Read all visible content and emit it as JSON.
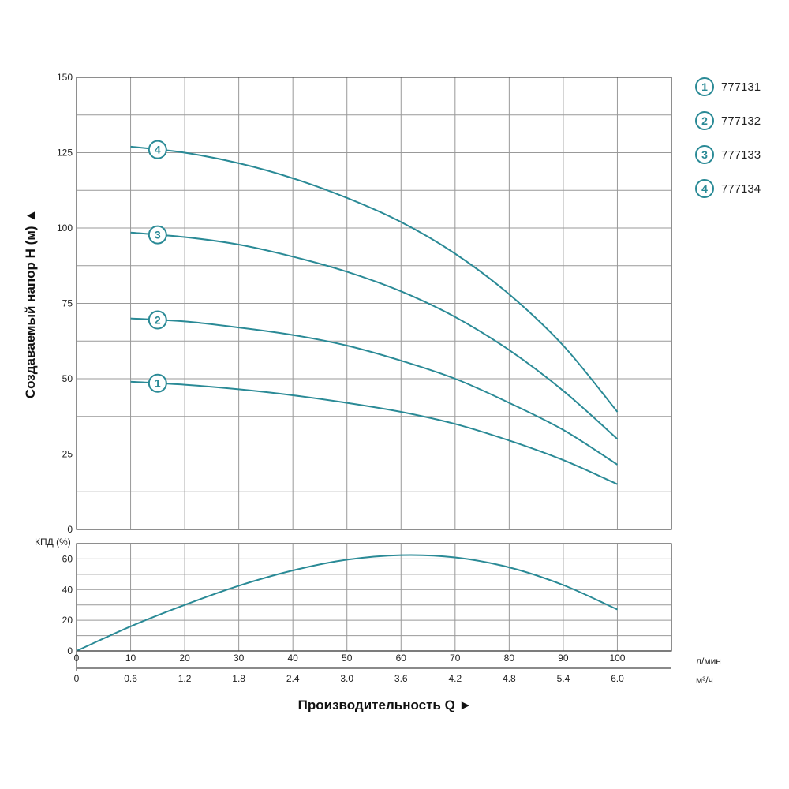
{
  "chart_data": [
    {
      "type": "line",
      "ylabel": "Создаваемый напор H (м) ▲",
      "ylim": [
        0,
        150
      ],
      "yticks": [
        "0",
        "25",
        "50",
        "75",
        "100",
        "125",
        "150"
      ],
      "xlim": [
        0,
        110
      ],
      "grid": true,
      "legend_position": "right",
      "series": [
        {
          "name": "777131",
          "marker": "1",
          "x": [
            10,
            20,
            30,
            40,
            50,
            60,
            70,
            80,
            90,
            100
          ],
          "values": [
            49,
            48,
            46.5,
            44.5,
            42,
            39,
            35,
            29.5,
            23,
            15
          ]
        },
        {
          "name": "777132",
          "marker": "2",
          "x": [
            10,
            20,
            30,
            40,
            50,
            60,
            70,
            80,
            90,
            100
          ],
          "values": [
            70,
            69,
            67,
            64.5,
            61,
            56,
            50,
            42,
            33,
            21.5
          ]
        },
        {
          "name": "777133",
          "marker": "3",
          "x": [
            10,
            20,
            30,
            40,
            50,
            60,
            70,
            80,
            90,
            100
          ],
          "values": [
            98.5,
            97,
            94.5,
            90.5,
            85.5,
            79,
            70.5,
            59.5,
            46,
            30
          ]
        },
        {
          "name": "777134",
          "marker": "4",
          "x": [
            10,
            20,
            30,
            40,
            50,
            60,
            70,
            80,
            90,
            100
          ],
          "values": [
            127,
            125,
            121.5,
            116.5,
            110,
            102,
            91.5,
            78,
            61,
            39
          ]
        }
      ]
    },
    {
      "type": "line",
      "ylabel": "КПД (%)",
      "ylim": [
        0,
        70
      ],
      "yticks": [
        "0",
        "20",
        "40",
        "60"
      ],
      "xlim": [
        0,
        110
      ],
      "grid": true,
      "series": [
        {
          "x": [
            0,
            10,
            20,
            30,
            40,
            50,
            60,
            70,
            80,
            90,
            100
          ],
          "values": [
            0,
            16,
            30,
            42.5,
            52.5,
            59.5,
            62.5,
            61,
            54.5,
            43,
            27
          ]
        }
      ]
    }
  ],
  "x_axis": {
    "title": "Производительность Q ►",
    "lmin_label": "л/мин",
    "lmin_ticks": [
      "0",
      "10",
      "20",
      "30",
      "40",
      "50",
      "60",
      "70",
      "80",
      "90",
      "100"
    ],
    "m3h_label": "м³/ч",
    "m3h_ticks": [
      "0",
      "0.6",
      "1.2",
      "1.8",
      "2.4",
      "3.0",
      "3.6",
      "4.2",
      "4.8",
      "5.4",
      "6.0"
    ]
  },
  "colors": {
    "curve": "#2a8a96",
    "grid": "#999999",
    "frame": "#444444"
  }
}
